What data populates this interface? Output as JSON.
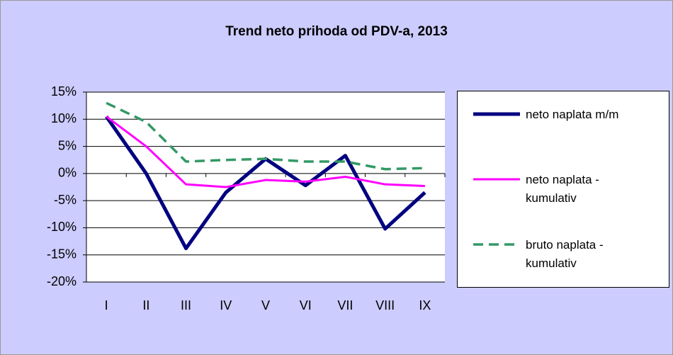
{
  "chart_data": {
    "type": "line",
    "title": "Trend neto prihoda od PDV-a, 2013",
    "categories": [
      "I",
      "II",
      "III",
      "IV",
      "V",
      "VI",
      "VII",
      "VIII",
      "IX"
    ],
    "series": [
      {
        "name": "neto naplata m/m",
        "color": "#000080",
        "values": [
          10.5,
          0,
          -13.8,
          -3.5,
          2.7,
          -2.2,
          3.3,
          -10.2,
          -3.5
        ]
      },
      {
        "name": "neto naplata - kumulativ",
        "color": "#ff00ff",
        "values": [
          10.5,
          5,
          -2,
          -2.5,
          -1.2,
          -1.5,
          -0.6,
          -2,
          -2.3
        ]
      },
      {
        "name": "bruto naplata - kumulativ",
        "color": "#339966",
        "values": [
          13,
          9.5,
          2.2,
          2.5,
          2.7,
          2.2,
          2.2,
          0.8,
          1
        ]
      }
    ],
    "ylim": [
      -20,
      15
    ],
    "yticks": [
      {
        "value": -20,
        "label": "-20%"
      },
      {
        "value": -15,
        "label": "-15%"
      },
      {
        "value": -10,
        "label": "-10%"
      },
      {
        "value": -5,
        "label": "-5%"
      },
      {
        "value": 0,
        "label": "0%"
      },
      {
        "value": 5,
        "label": "5%"
      },
      {
        "value": 10,
        "label": "10%"
      },
      {
        "value": 15,
        "label": "15%"
      }
    ],
    "grid": true,
    "legend": "right"
  }
}
